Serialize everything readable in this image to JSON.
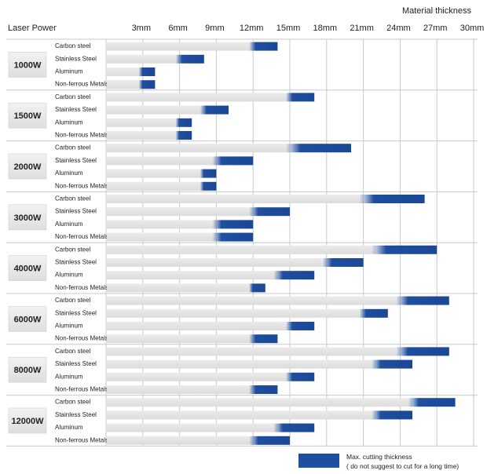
{
  "chart_data": {
    "type": "bar",
    "title": "",
    "xlabel": "Material thickness",
    "ylabel": "Laser Power",
    "x_unit": "mm",
    "xlim": [
      0,
      30
    ],
    "x_ticks": [
      3,
      6,
      9,
      12,
      15,
      18,
      21,
      24,
      27,
      30
    ],
    "x_tick_labels": [
      "3mm",
      "6mm",
      "9mm",
      "12mm",
      "15mm",
      "18mm",
      "21mm",
      "24mm",
      "27mm",
      "30mm"
    ],
    "grid": true,
    "legend_position": "bottom-right",
    "materials": [
      "Carbon steel",
      "Stainless Steel",
      "Aluminum",
      "Non-ferrous Metals"
    ],
    "series": [
      {
        "name": "Max. cutting thickness",
        "note": "( do not suggest to cut for a long time)"
      }
    ],
    "colors": {
      "normal": "#e3e3e3",
      "max": "#1f4e9e",
      "grid": "#c8c8c8",
      "label_box": "#e6e6e6"
    },
    "groups": [
      {
        "power": "1000W",
        "rows": [
          {
            "material": "Carbon steel",
            "normal_mm": 12,
            "max_mm": 14
          },
          {
            "material": "Stainless Steel",
            "normal_mm": 6,
            "max_mm": 8
          },
          {
            "material": "Aluminum",
            "normal_mm": 3,
            "max_mm": 4
          },
          {
            "material": "Non-ferrous Metals",
            "normal_mm": 3,
            "max_mm": 4
          }
        ]
      },
      {
        "power": "1500W",
        "rows": [
          {
            "material": "Carbon steel",
            "normal_mm": 15,
            "max_mm": 17
          },
          {
            "material": "Stainless Steel",
            "normal_mm": 8,
            "max_mm": 10
          },
          {
            "material": "Aluminum",
            "normal_mm": 6,
            "max_mm": 7
          },
          {
            "material": "Non-ferrous Metals",
            "normal_mm": 6,
            "max_mm": 7
          }
        ]
      },
      {
        "power": "2000W",
        "rows": [
          {
            "material": "Carbon steel",
            "normal_mm": 15,
            "max_mm": 20
          },
          {
            "material": "Stainless Steel",
            "normal_mm": 9,
            "max_mm": 12
          },
          {
            "material": "Aluminum",
            "normal_mm": 8,
            "max_mm": 9
          },
          {
            "material": "Non-ferrous Metals",
            "normal_mm": 8,
            "max_mm": 9
          }
        ]
      },
      {
        "power": "3000W",
        "rows": [
          {
            "material": "Carbon steel",
            "normal_mm": 21,
            "max_mm": 26
          },
          {
            "material": "Stainless Steel",
            "normal_mm": 12,
            "max_mm": 15
          },
          {
            "material": "Aluminum",
            "normal_mm": 9,
            "max_mm": 12
          },
          {
            "material": "Non-ferrous Metals",
            "normal_mm": 9,
            "max_mm": 12
          }
        ]
      },
      {
        "power": "4000W",
        "rows": [
          {
            "material": "Carbon steel",
            "normal_mm": 22,
            "max_mm": 27
          },
          {
            "material": "Stainless Steel",
            "normal_mm": 18,
            "max_mm": 21
          },
          {
            "material": "Aluminum",
            "normal_mm": 14,
            "max_mm": 17
          },
          {
            "material": "Non-ferrous Metals",
            "normal_mm": 12,
            "max_mm": 13
          }
        ]
      },
      {
        "power": "6000W",
        "rows": [
          {
            "material": "Carbon steel",
            "normal_mm": 24,
            "max_mm": 28
          },
          {
            "material": "Stainless Steel",
            "normal_mm": 21,
            "max_mm": 23
          },
          {
            "material": "Aluminum",
            "normal_mm": 15,
            "max_mm": 17
          },
          {
            "material": "Non-ferrous Metals",
            "normal_mm": 12,
            "max_mm": 14
          }
        ]
      },
      {
        "power": "8000W",
        "rows": [
          {
            "material": "Carbon steel",
            "normal_mm": 24,
            "max_mm": 28
          },
          {
            "material": "Stainless Steel",
            "normal_mm": 22,
            "max_mm": 25
          },
          {
            "material": "Aluminum",
            "normal_mm": 15,
            "max_mm": 17
          },
          {
            "material": "Non-ferrous Metals",
            "normal_mm": 12,
            "max_mm": 14
          }
        ]
      },
      {
        "power": "12000W",
        "rows": [
          {
            "material": "Carbon steel",
            "normal_mm": 25,
            "max_mm": 28.5
          },
          {
            "material": "Stainless Steel",
            "normal_mm": 22,
            "max_mm": 25
          },
          {
            "material": "Aluminum",
            "normal_mm": 14,
            "max_mm": 17
          },
          {
            "material": "Non-ferrous Metals",
            "normal_mm": 12,
            "max_mm": 15
          }
        ]
      }
    ]
  }
}
